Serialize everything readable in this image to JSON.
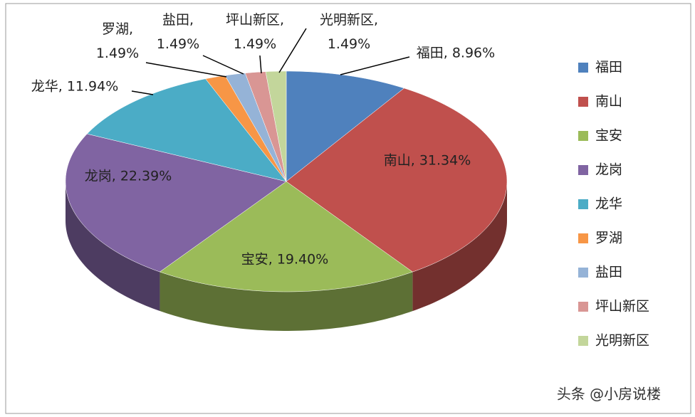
{
  "chart_data": {
    "type": "pie",
    "style": "3d",
    "categories": [
      "福田",
      "南山",
      "宝安",
      "龙岗",
      "龙华",
      "罗湖",
      "盐田",
      "坪山新区",
      "光明新区"
    ],
    "values": [
      8.96,
      31.34,
      19.4,
      22.39,
      11.94,
      1.49,
      1.49,
      1.49,
      1.49
    ],
    "value_labels": [
      "福田, 8.96%",
      "南山, 31.34%",
      "宝安, 19.40%",
      "龙岗, 22.39%",
      "龙华, 11.94%",
      "罗湖, 1.49%",
      "盐田, 1.49%",
      "坪山新区, 1.49%",
      "光明新区, 1.49%"
    ],
    "colors": [
      "#4f81bd",
      "#c0504d",
      "#9bbb59",
      "#8064a2",
      "#4bacc6",
      "#f79646",
      "#95b3d7",
      "#d99694",
      "#c3d69b"
    ],
    "legend": "right"
  },
  "watermark": "头条 @小房说楼"
}
